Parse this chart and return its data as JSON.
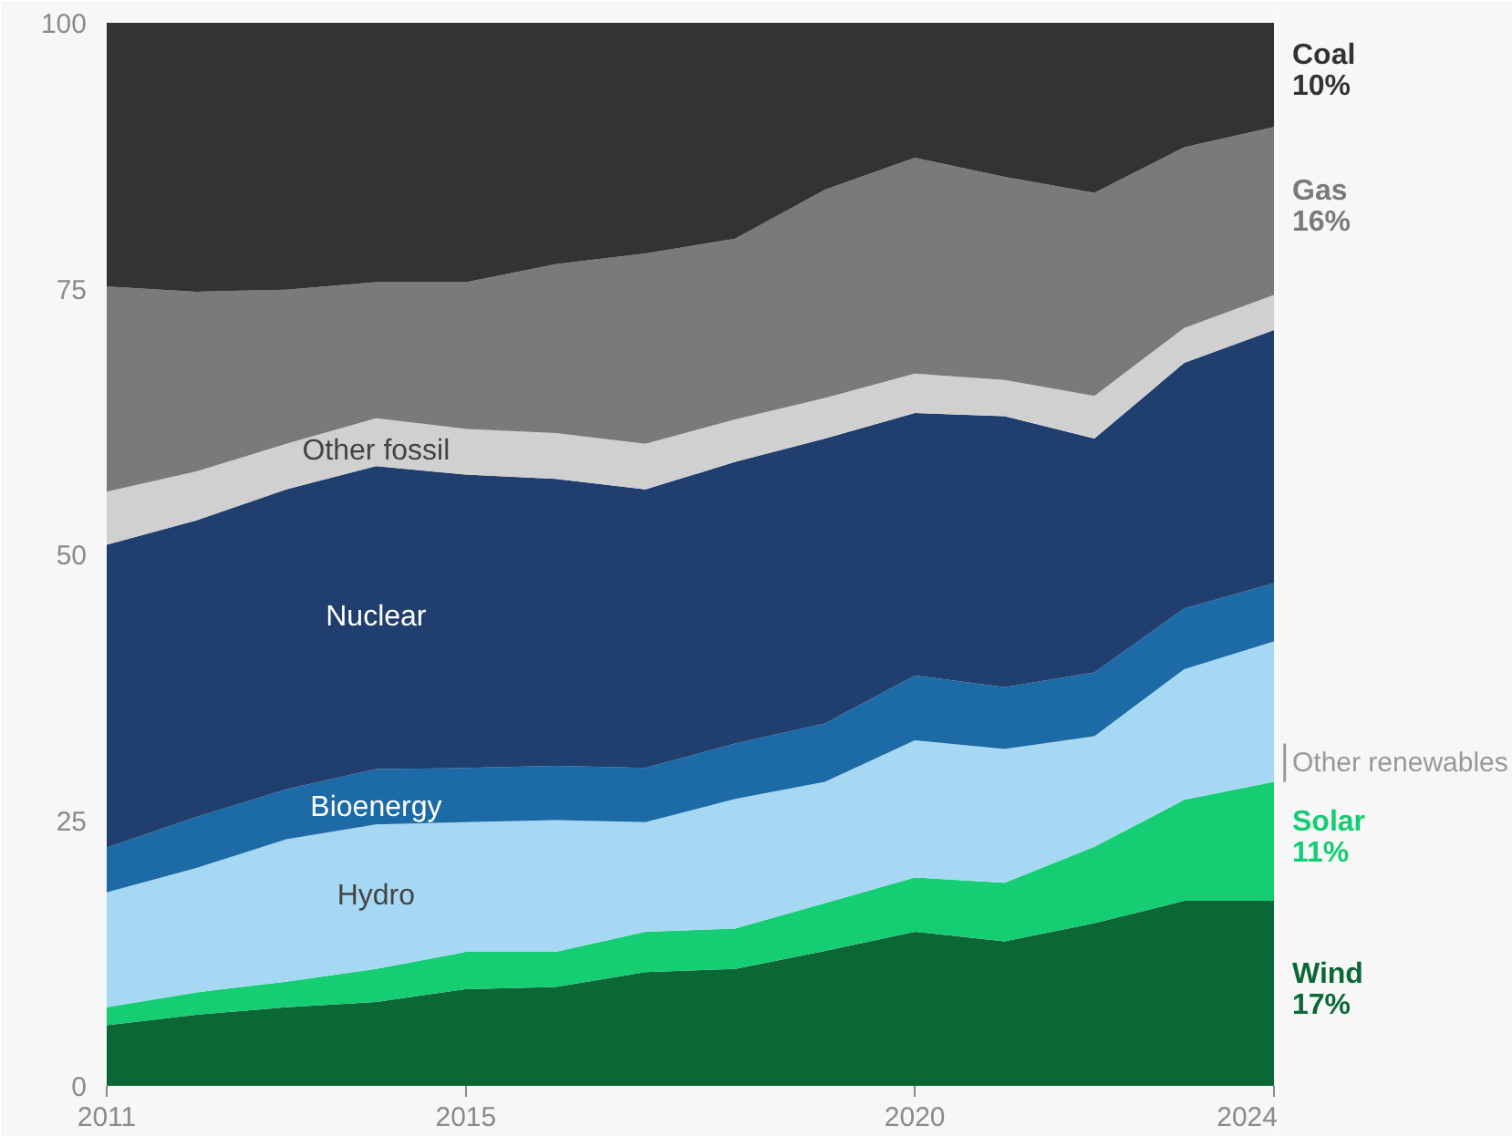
{
  "chart_data": {
    "type": "area",
    "stacked": true,
    "x": [
      2011,
      2012,
      2013,
      2014,
      2015,
      2016,
      2017,
      2018,
      2019,
      2020,
      2021,
      2022,
      2023,
      2024
    ],
    "xlim": [
      2011,
      2024
    ],
    "xticks": [
      2011,
      2015,
      2020,
      2024
    ],
    "ylim": [
      0,
      100
    ],
    "yticks": [
      0,
      25,
      50,
      75,
      100
    ],
    "grid": false,
    "legend": false,
    "series": [
      {
        "name": "Wind",
        "color": "#0b6736",
        "values": [
          5.7,
          6.7,
          7.4,
          7.9,
          9.1,
          9.3,
          10.7,
          11.0,
          12.7,
          14.5,
          13.6,
          15.3,
          17.4,
          17.4
        ],
        "value_labels": [
          null,
          null,
          null,
          null,
          null,
          null,
          null,
          null,
          null,
          null,
          null,
          null,
          null,
          "17%"
        ]
      },
      {
        "name": "Solar",
        "color": "#15cd72",
        "values": [
          1.7,
          2.1,
          2.4,
          3.1,
          3.5,
          3.3,
          3.8,
          3.8,
          4.5,
          5.1,
          5.5,
          7.2,
          9.5,
          11.2
        ],
        "value_labels": [
          null,
          null,
          null,
          null,
          null,
          null,
          null,
          null,
          null,
          null,
          null,
          null,
          null,
          "11%"
        ]
      },
      {
        "name": "Hydro",
        "color": "#a6d8f3",
        "values": [
          10.8,
          11.7,
          13.4,
          13.6,
          12.2,
          12.4,
          10.3,
          12.2,
          11.4,
          12.9,
          12.6,
          10.4,
          12.3,
          13.2
        ]
      },
      {
        "name": "Bioenergy",
        "color": "#1c6aa6",
        "values": [
          4.2,
          4.8,
          4.7,
          5.2,
          5.1,
          5.1,
          5.1,
          5.2,
          5.5,
          6.1,
          5.8,
          6.0,
          5.7,
          5.5
        ]
      },
      {
        "name": "Nuclear",
        "color": "#203f6e",
        "values": [
          28.5,
          27.9,
          28.2,
          28.5,
          27.6,
          27.0,
          26.2,
          26.5,
          26.8,
          24.7,
          25.5,
          22.0,
          23.1,
          23.8
        ]
      },
      {
        "name": "Other fossil",
        "color": "#d0d0d0",
        "values": [
          5.0,
          4.6,
          4.3,
          4.5,
          4.3,
          4.3,
          4.3,
          4.0,
          3.8,
          3.7,
          3.4,
          4.0,
          3.3,
          3.3
        ]
      },
      {
        "name": "Gas",
        "color": "#7a7a7a",
        "values": [
          19.3,
          16.9,
          14.5,
          12.8,
          13.8,
          15.9,
          17.9,
          17.0,
          19.6,
          20.3,
          19.1,
          19.1,
          17.0,
          15.8
        ],
        "value_labels": [
          null,
          null,
          null,
          null,
          null,
          null,
          null,
          null,
          null,
          null,
          null,
          null,
          null,
          "16%"
        ]
      },
      {
        "name": "Coal",
        "color": "#333333",
        "values": [
          24.8,
          25.3,
          25.1,
          24.4,
          24.4,
          22.7,
          21.7,
          20.3,
          15.7,
          12.7,
          14.5,
          16.0,
          11.7,
          9.8
        ],
        "value_labels": [
          null,
          null,
          null,
          null,
          null,
          null,
          null,
          null,
          null,
          null,
          null,
          null,
          null,
          "10%"
        ]
      }
    ],
    "annotations": [
      {
        "text": "Other renewables",
        "x": 2024,
        "y": 28.6
      }
    ]
  }
}
